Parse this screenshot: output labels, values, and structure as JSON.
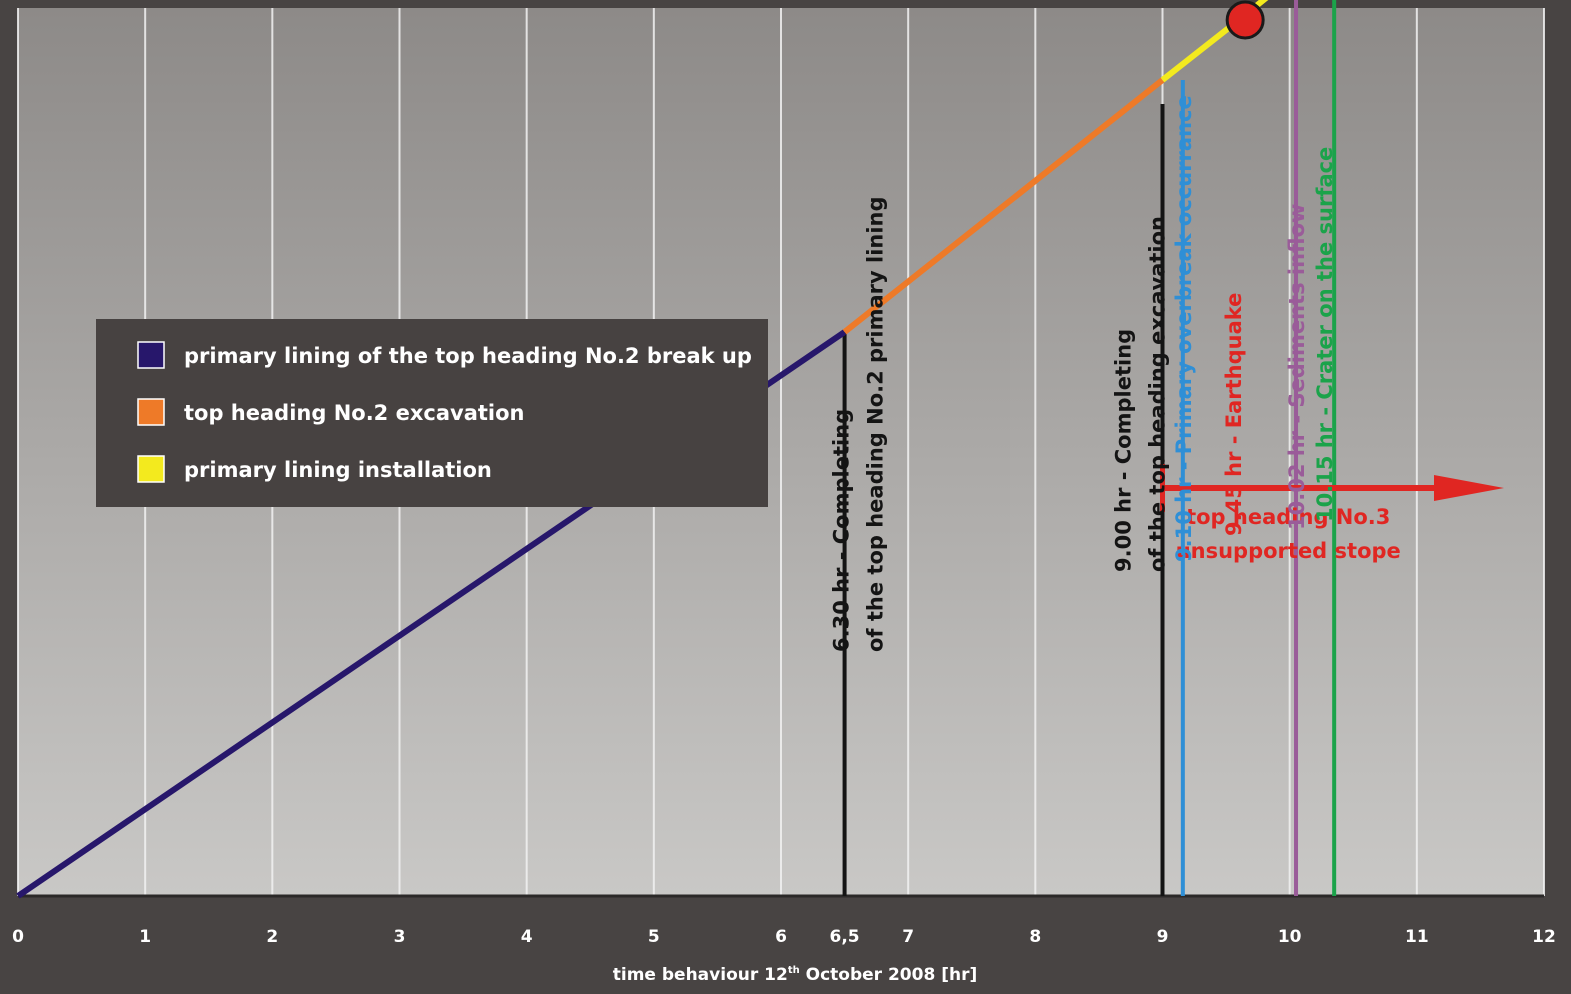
{
  "chart_data": {
    "type": "line",
    "xlabel": "time behaviour 12th October 2008 [hr]",
    "xlabel_main": "time behaviour 12",
    "xlabel_sup": "th",
    "xlabel_rest": " October 2008 [hr]",
    "xlim": [
      0,
      12
    ],
    "tick_labels": [
      "0",
      "1",
      "2",
      "3",
      "4",
      "5",
      "6",
      "6,5",
      "7",
      "8",
      "9",
      "10",
      "11",
      "12"
    ],
    "tick_values": [
      0,
      1,
      2,
      3,
      4,
      5,
      6,
      6.5,
      7,
      8,
      9,
      10,
      11,
      12
    ],
    "grid": true,
    "legend_position": "left-middle",
    "legend": [
      {
        "label": "primary lining of the top heading No.2 break up",
        "color": "#27176b"
      },
      {
        "label": "top heading No.2 excavation",
        "color": "#ee7a28"
      },
      {
        "label": "primary lining installation",
        "color": "#f3ea1e"
      }
    ],
    "series": [
      {
        "name": "primary lining of the top heading No.2 break up",
        "color": "#27176b",
        "style": "solid",
        "x": [
          0,
          6.5
        ],
        "y": [
          0,
          0.235
        ]
      },
      {
        "name": "top heading No.2 excavation",
        "color": "#ee7a28",
        "style": "solid",
        "x": [
          6.5,
          9.0
        ],
        "y": [
          0.235,
          0.34
        ]
      },
      {
        "name": "primary lining installation",
        "color": "#f3ea1e",
        "style": "solid",
        "x": [
          9.0,
          9.6
        ],
        "y": [
          0.34,
          0.365
        ]
      },
      {
        "name": "primary lining installation",
        "color": "#f3ea1e",
        "style": "dashed",
        "x": [
          9.6,
          10.3
        ],
        "y": [
          0.365,
          0.395
        ]
      }
    ],
    "events": [
      {
        "x": 6.5,
        "color": "#141414",
        "lines": [
          "6.30 hr - Completing",
          "of the top heading No.2 primary lining"
        ],
        "line_top": 0.235
      },
      {
        "x": 9.0,
        "color": "#141414",
        "lines": [
          "9.00 hr - Completing",
          "of the top heading excavation"
        ],
        "line_top": 0.33
      },
      {
        "x": 9.16,
        "color": "#2f8fd6",
        "lines": [
          "9.10 hr - Primary overbreak occurrance"
        ],
        "line_top": 0.34
      },
      {
        "x": 9.65,
        "color": "#e02622",
        "lines": [
          "9.45 hr - Earthquake"
        ],
        "marker": "circle",
        "marker_y": 0.365
      },
      {
        "x": 10.05,
        "color": "#9a5c99",
        "lines": [
          "10.02 hr - Sediments inflow"
        ],
        "line_top": 0.38
      },
      {
        "x": 10.35,
        "color": "#1ba34a",
        "lines": [
          "10.15 hr - Crater on the surface"
        ],
        "line_top": 0.4,
        "arrow": true
      }
    ],
    "annotation": {
      "x_start": 9.0,
      "x_end": 12.0,
      "y": 0.17,
      "color": "#e02622",
      "lines": [
        "top heading No.3",
        "unsupported stope"
      ]
    }
  }
}
